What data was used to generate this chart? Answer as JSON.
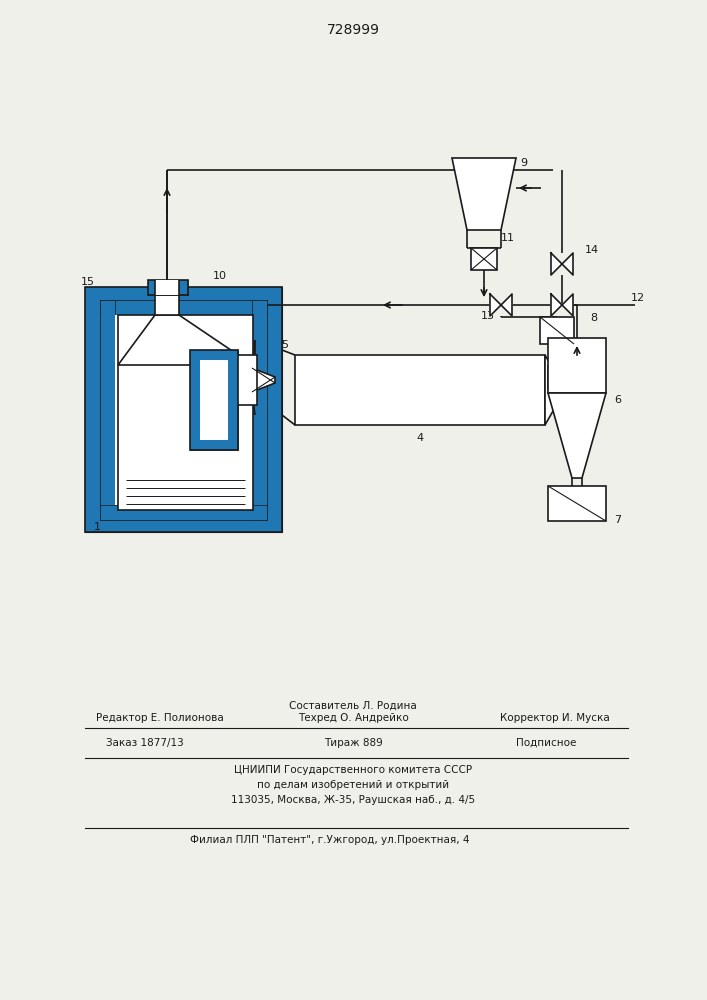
{
  "title": "728999",
  "bg_color": "#f0f0eb",
  "line_color": "#1a1a1a",
  "footer_editor": "Редактор Е. Полионова",
  "footer_compiler": "Составитель Л. Родина",
  "footer_tech": "Техред О. Андрейко",
  "footer_corrector": "Корректор И. Муска",
  "footer_order": "Заказ 1877/13",
  "footer_print": "Тираж 889",
  "footer_signed": "Подписное",
  "footer_org1": "ЦНИИПИ Государственного комитета СССР",
  "footer_org2": "по делам изобретений и открытий",
  "footer_org3": "113035, Москва, Ж-35, Раушская наб., д. 4/5",
  "footer_branch": "Филиал ПЛП \"Патент\", г.Ужгород, ул.Проектная, 4"
}
